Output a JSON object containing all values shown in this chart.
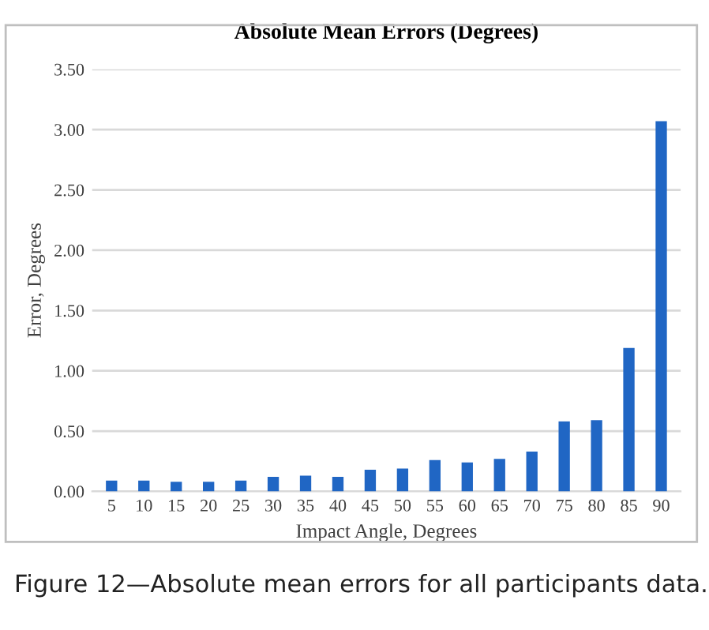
{
  "chart_data": {
    "type": "bar",
    "title": "Absolute Mean Errors (Degrees)",
    "xlabel": "Impact Angle, Degrees",
    "ylabel": "Error, Degrees",
    "categories": [
      "5",
      "10",
      "15",
      "20",
      "25",
      "30",
      "35",
      "40",
      "45",
      "50",
      "55",
      "60",
      "65",
      "70",
      "75",
      "80",
      "85",
      "90"
    ],
    "values": [
      0.09,
      0.09,
      0.08,
      0.08,
      0.09,
      0.12,
      0.13,
      0.12,
      0.18,
      0.19,
      0.26,
      0.24,
      0.27,
      0.33,
      0.58,
      0.59,
      1.19,
      3.07
    ],
    "color": "#2066c4",
    "ylim": [
      0,
      3.5
    ],
    "yticks": [
      {
        "value": 0,
        "label": "0.00"
      },
      {
        "value": 0.5,
        "label": "0.50"
      },
      {
        "value": 1,
        "label": "1.00"
      },
      {
        "value": 1.5,
        "label": "1.50"
      },
      {
        "value": 2,
        "label": "2.00"
      },
      {
        "value": 2.5,
        "label": "2.50"
      },
      {
        "value": 3,
        "label": "3.00"
      },
      {
        "value": 3.5,
        "label": "3.50"
      }
    ],
    "grid": "y",
    "legend": false,
    "annotations": [
      "Figure 12—Absolute mean errors for all participants data."
    ]
  }
}
